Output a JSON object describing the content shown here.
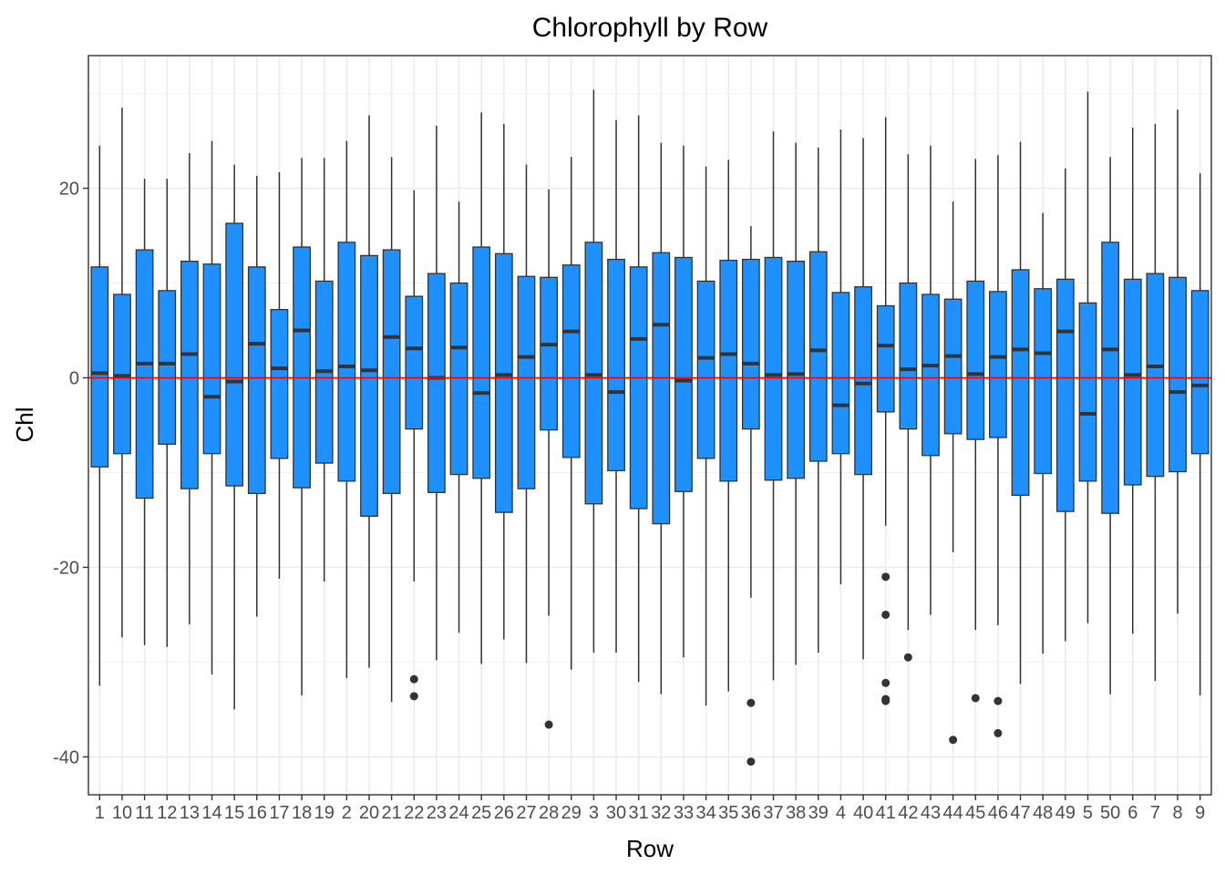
{
  "chart_data": {
    "type": "boxplot",
    "title": "Chlorophyll by Row",
    "xlabel": "Row",
    "ylabel": "Chl",
    "ylim": [
      -44,
      34
    ],
    "yticks": [
      20,
      0,
      -20,
      -40
    ],
    "grid": true,
    "legend": "none",
    "reference_line": {
      "y": 0,
      "color": "#ff0000"
    },
    "box_fill": "#1e90ff",
    "categories": [
      "1",
      "10",
      "11",
      "12",
      "13",
      "14",
      "15",
      "16",
      "17",
      "18",
      "19",
      "2",
      "20",
      "21",
      "22",
      "23",
      "24",
      "25",
      "26",
      "27",
      "28",
      "29",
      "3",
      "30",
      "31",
      "32",
      "33",
      "34",
      "35",
      "36",
      "37",
      "38",
      "39",
      "4",
      "40",
      "41",
      "42",
      "43",
      "44",
      "45",
      "46",
      "47",
      "48",
      "49",
      "5",
      "50",
      "6",
      "7",
      "8",
      "9"
    ],
    "boxes": [
      {
        "whisker_low": -32.5,
        "q1": -9.4,
        "median": 0.5,
        "q3": 11.7,
        "whisker_high": 24.5,
        "outliers": []
      },
      {
        "whisker_low": -27.4,
        "q1": -8.0,
        "median": 0.2,
        "q3": 8.8,
        "whisker_high": 28.5,
        "outliers": []
      },
      {
        "whisker_low": -28.2,
        "q1": -12.7,
        "median": 1.5,
        "q3": 13.5,
        "whisker_high": 21.0,
        "outliers": []
      },
      {
        "whisker_low": -28.4,
        "q1": -7.0,
        "median": 1.5,
        "q3": 9.2,
        "whisker_high": 21.0,
        "outliers": []
      },
      {
        "whisker_low": -26.0,
        "q1": -11.7,
        "median": 2.5,
        "q3": 12.3,
        "whisker_high": 23.7,
        "outliers": []
      },
      {
        "whisker_low": -31.3,
        "q1": -8.0,
        "median": -2.0,
        "q3": 12.0,
        "whisker_high": 25.0,
        "outliers": []
      },
      {
        "whisker_low": -35.0,
        "q1": -11.4,
        "median": -0.4,
        "q3": 16.3,
        "whisker_high": 22.5,
        "outliers": []
      },
      {
        "whisker_low": -25.2,
        "q1": -12.2,
        "median": 3.6,
        "q3": 11.7,
        "whisker_high": 21.3,
        "outliers": []
      },
      {
        "whisker_low": -21.2,
        "q1": -8.5,
        "median": 1.0,
        "q3": 7.2,
        "whisker_high": 21.7,
        "outliers": []
      },
      {
        "whisker_low": -33.5,
        "q1": -11.6,
        "median": 5.0,
        "q3": 13.8,
        "whisker_high": 23.2,
        "outliers": []
      },
      {
        "whisker_low": -21.5,
        "q1": -9.0,
        "median": 0.7,
        "q3": 10.2,
        "whisker_high": 23.2,
        "outliers": []
      },
      {
        "whisker_low": -31.7,
        "q1": -10.9,
        "median": 1.2,
        "q3": 14.3,
        "whisker_high": 25.0,
        "outliers": []
      },
      {
        "whisker_low": -30.6,
        "q1": -14.6,
        "median": 0.8,
        "q3": 12.9,
        "whisker_high": 27.7,
        "outliers": []
      },
      {
        "whisker_low": -34.2,
        "q1": -12.2,
        "median": 4.3,
        "q3": 13.5,
        "whisker_high": 23.3,
        "outliers": []
      },
      {
        "whisker_low": -21.5,
        "q1": -5.4,
        "median": 3.1,
        "q3": 8.6,
        "whisker_high": 19.8,
        "outliers": [
          -31.8,
          -33.6
        ]
      },
      {
        "whisker_low": -29.8,
        "q1": -12.1,
        "median": 0.0,
        "q3": 11.0,
        "whisker_high": 26.6,
        "outliers": []
      },
      {
        "whisker_low": -26.9,
        "q1": -10.2,
        "median": 3.2,
        "q3": 10.0,
        "whisker_high": 18.6,
        "outliers": []
      },
      {
        "whisker_low": -30.2,
        "q1": -10.6,
        "median": -1.6,
        "q3": 13.8,
        "whisker_high": 28.0,
        "outliers": []
      },
      {
        "whisker_low": -27.6,
        "q1": -14.2,
        "median": 0.3,
        "q3": 13.1,
        "whisker_high": 26.8,
        "outliers": []
      },
      {
        "whisker_low": -30.1,
        "q1": -11.7,
        "median": 2.2,
        "q3": 10.7,
        "whisker_high": 22.5,
        "outliers": []
      },
      {
        "whisker_low": -25.1,
        "q1": -5.5,
        "median": 3.5,
        "q3": 10.6,
        "whisker_high": 19.9,
        "outliers": [
          -36.6
        ]
      },
      {
        "whisker_low": -30.8,
        "q1": -8.4,
        "median": 4.9,
        "q3": 11.9,
        "whisker_high": 23.3,
        "outliers": []
      },
      {
        "whisker_low": -29.0,
        "q1": -13.3,
        "median": 0.3,
        "q3": 14.3,
        "whisker_high": 30.4,
        "outliers": []
      },
      {
        "whisker_low": -29.0,
        "q1": -9.8,
        "median": -1.5,
        "q3": 12.5,
        "whisker_high": 27.2,
        "outliers": []
      },
      {
        "whisker_low": -32.1,
        "q1": -13.8,
        "median": 4.1,
        "q3": 11.7,
        "whisker_high": 27.7,
        "outliers": []
      },
      {
        "whisker_low": -33.4,
        "q1": -15.4,
        "median": 5.6,
        "q3": 13.2,
        "whisker_high": 24.8,
        "outliers": []
      },
      {
        "whisker_low": -29.5,
        "q1": -12.0,
        "median": -0.3,
        "q3": 12.7,
        "whisker_high": 24.5,
        "outliers": []
      },
      {
        "whisker_low": -34.6,
        "q1": -8.5,
        "median": 2.1,
        "q3": 10.2,
        "whisker_high": 22.3,
        "outliers": []
      },
      {
        "whisker_low": -33.1,
        "q1": -10.9,
        "median": 2.5,
        "q3": 12.4,
        "whisker_high": 23.0,
        "outliers": []
      },
      {
        "whisker_low": -23.2,
        "q1": -5.4,
        "median": 1.5,
        "q3": 12.5,
        "whisker_high": 16.0,
        "outliers": [
          -34.3,
          -40.5
        ]
      },
      {
        "whisker_low": -31.9,
        "q1": -10.8,
        "median": 0.3,
        "q3": 12.7,
        "whisker_high": 26.0,
        "outliers": []
      },
      {
        "whisker_low": -30.3,
        "q1": -10.6,
        "median": 0.4,
        "q3": 12.3,
        "whisker_high": 24.8,
        "outliers": []
      },
      {
        "whisker_low": -29.0,
        "q1": -8.8,
        "median": 2.9,
        "q3": 13.3,
        "whisker_high": 24.3,
        "outliers": []
      },
      {
        "whisker_low": -21.8,
        "q1": -8.0,
        "median": -2.9,
        "q3": 9.0,
        "whisker_high": 26.2,
        "outliers": []
      },
      {
        "whisker_low": -29.7,
        "q1": -10.2,
        "median": -0.6,
        "q3": 9.6,
        "whisker_high": 25.3,
        "outliers": []
      },
      {
        "whisker_low": -15.6,
        "q1": -3.6,
        "median": 3.4,
        "q3": 7.6,
        "whisker_high": 27.5,
        "outliers": [
          -21.0,
          -25.0,
          -32.2,
          -33.9,
          -34.1
        ]
      },
      {
        "whisker_low": -26.6,
        "q1": -5.4,
        "median": 0.9,
        "q3": 10.0,
        "whisker_high": 23.6,
        "outliers": [
          -29.5
        ]
      },
      {
        "whisker_low": -25.0,
        "q1": -8.2,
        "median": 1.3,
        "q3": 8.8,
        "whisker_high": 24.5,
        "outliers": []
      },
      {
        "whisker_low": -18.4,
        "q1": -5.9,
        "median": 2.3,
        "q3": 8.3,
        "whisker_high": 18.6,
        "outliers": [
          -38.2
        ]
      },
      {
        "whisker_low": -26.6,
        "q1": -6.5,
        "median": 0.4,
        "q3": 10.2,
        "whisker_high": 23.1,
        "outliers": [
          -33.8
        ]
      },
      {
        "whisker_low": -26.1,
        "q1": -6.3,
        "median": 2.2,
        "q3": 9.1,
        "whisker_high": 23.5,
        "outliers": [
          -34.1,
          -37.5
        ]
      },
      {
        "whisker_low": -32.3,
        "q1": -12.4,
        "median": 3.0,
        "q3": 11.4,
        "whisker_high": 24.9,
        "outliers": []
      },
      {
        "whisker_low": -29.1,
        "q1": -10.1,
        "median": 2.6,
        "q3": 9.4,
        "whisker_high": 17.4,
        "outliers": []
      },
      {
        "whisker_low": -27.8,
        "q1": -14.1,
        "median": 4.9,
        "q3": 10.4,
        "whisker_high": 22.1,
        "outliers": []
      },
      {
        "whisker_low": -25.9,
        "q1": -10.9,
        "median": -3.8,
        "q3": 7.9,
        "whisker_high": 30.2,
        "outliers": []
      },
      {
        "whisker_low": -33.4,
        "q1": -14.3,
        "median": 3.0,
        "q3": 14.3,
        "whisker_high": 23.3,
        "outliers": []
      },
      {
        "whisker_low": -27.0,
        "q1": -11.3,
        "median": 0.3,
        "q3": 10.4,
        "whisker_high": 26.4,
        "outliers": []
      },
      {
        "whisker_low": -32.0,
        "q1": -10.4,
        "median": 1.2,
        "q3": 11.0,
        "whisker_high": 26.8,
        "outliers": []
      },
      {
        "whisker_low": -24.9,
        "q1": -9.9,
        "median": -1.5,
        "q3": 10.6,
        "whisker_high": 28.3,
        "outliers": []
      },
      {
        "whisker_low": -33.5,
        "q1": -8.0,
        "median": -0.8,
        "q3": 9.2,
        "whisker_high": 21.6,
        "outliers": []
      }
    ]
  }
}
